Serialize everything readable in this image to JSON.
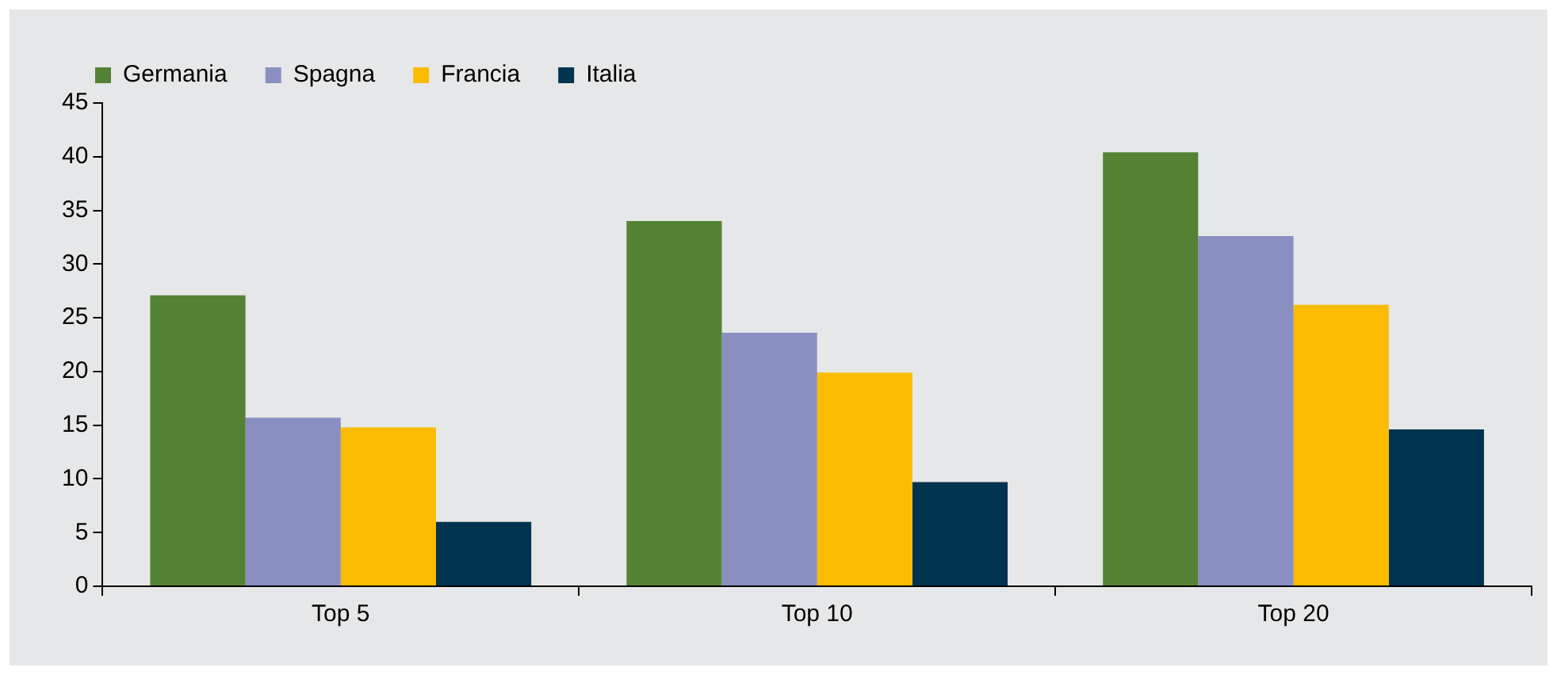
{
  "chart_data": {
    "type": "bar",
    "categories": [
      "Top 5",
      "Top 10",
      "Top 20"
    ],
    "series": [
      {
        "name": "Germania",
        "color": "#548235",
        "values": [
          27.1,
          34.0,
          40.4
        ]
      },
      {
        "name": "Spagna",
        "color": "#8a8fc2",
        "values": [
          15.7,
          23.6,
          32.6
        ]
      },
      {
        "name": "Francia",
        "color": "#fbbb00",
        "values": [
          14.8,
          19.9,
          26.2
        ]
      },
      {
        "name": "Italia",
        "color": "#00334e",
        "values": [
          6.0,
          9.7,
          14.6
        ]
      }
    ],
    "ylim": [
      0,
      45
    ],
    "yticks": [
      0,
      5,
      10,
      15,
      20,
      25,
      30,
      35,
      40,
      45
    ],
    "grid": false,
    "legend": "top left"
  }
}
